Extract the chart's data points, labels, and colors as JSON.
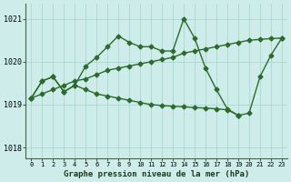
{
  "x": [
    0,
    1,
    2,
    3,
    4,
    5,
    6,
    7,
    8,
    9,
    10,
    11,
    12,
    13,
    14,
    15,
    16,
    17,
    18,
    19,
    20,
    21,
    22,
    23
  ],
  "line_diagonal": [
    1019.15,
    1019.25,
    1019.35,
    1019.45,
    1019.55,
    1019.6,
    1019.7,
    1019.8,
    1019.85,
    1019.9,
    1019.95,
    1020.0,
    1020.05,
    1020.1,
    1020.2,
    1020.25,
    1020.3,
    1020.35,
    1020.4,
    1020.45,
    1020.5,
    1020.52,
    1020.54,
    1020.55
  ],
  "line_peak": [
    1019.15,
    1019.55,
    1019.65,
    1019.3,
    1019.45,
    1019.9,
    1020.1,
    1020.35,
    1020.6,
    1020.45,
    1020.35,
    1020.35,
    1020.25,
    1020.25,
    1021.0,
    1020.55,
    1019.85,
    1019.35,
    1018.9,
    1018.75,
    null,
    null,
    null,
    null
  ],
  "line_flat": [
    1019.15,
    1019.55,
    1019.65,
    1019.3,
    1019.45,
    1019.35,
    1019.25,
    1019.2,
    1019.15,
    1019.1,
    1019.05,
    1019.0,
    1018.98,
    1018.96,
    1018.95,
    1018.93,
    1018.92,
    1018.9,
    1018.88,
    1018.75,
    null,
    null,
    null,
    null
  ],
  "line_recover": [
    null,
    null,
    null,
    null,
    null,
    null,
    null,
    null,
    null,
    null,
    null,
    null,
    null,
    null,
    null,
    null,
    null,
    null,
    null,
    1018.75,
    1018.8,
    1019.65,
    1020.15,
    1020.55
  ],
  "background_color": "#ceecea",
  "line_color": "#2d6a2d",
  "grid_color": "#aad8d0",
  "title": "Graphe pression niveau de la mer (hPa)",
  "ylabel_ticks": [
    1018,
    1019,
    1020,
    1021
  ],
  "xlim": [
    -0.5,
    23.5
  ],
  "ylim": [
    1017.75,
    1021.35
  ],
  "xlabel_ticks": [
    0,
    1,
    2,
    3,
    4,
    5,
    6,
    7,
    8,
    9,
    10,
    11,
    12,
    13,
    14,
    15,
    16,
    17,
    18,
    19,
    20,
    21,
    22,
    23
  ],
  "marker": "D",
  "marker_size": 2.5,
  "line_width": 1.0
}
